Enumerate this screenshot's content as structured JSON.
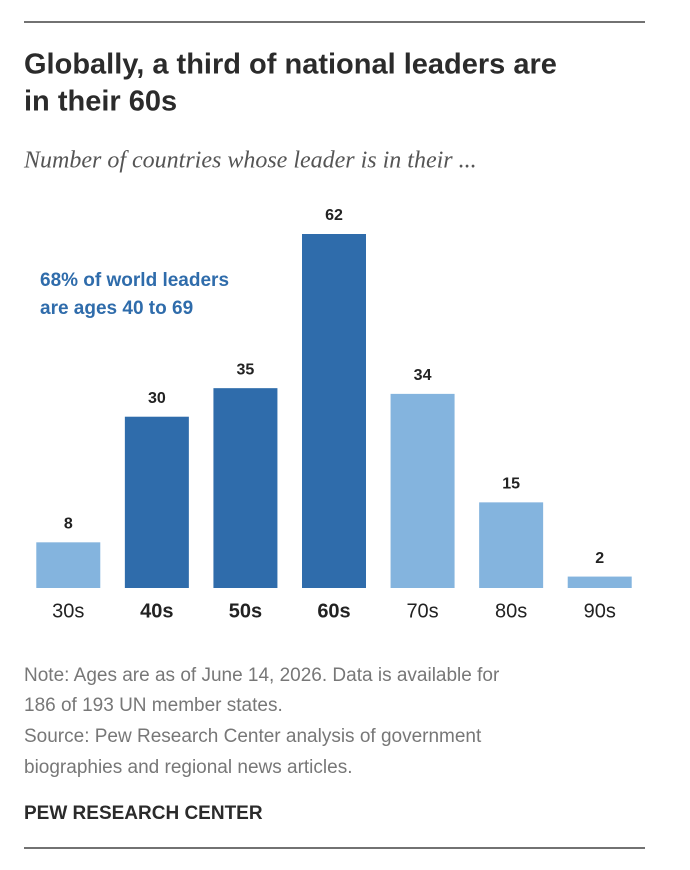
{
  "chart_data": {
    "type": "bar",
    "title": [
      "Globally, a third of national leaders are",
      "in their 60s"
    ],
    "subtitle": "Number of countries whose leader is in their ...",
    "categories": [
      "30s",
      "40s",
      "50s",
      "60s",
      "70s",
      "80s",
      "90s"
    ],
    "values": [
      8,
      30,
      35,
      62,
      34,
      15,
      2
    ],
    "colors": [
      "#84b4de",
      "#2f6cab",
      "#2f6cab",
      "#2f6cab",
      "#84b4de",
      "#84b4de",
      "#84b4de"
    ],
    "ylim": [
      0,
      62
    ],
    "annotation": [
      "68% of world leaders",
      "are ages 40 to 69"
    ],
    "annotation_color": "#2f6cab",
    "notes": [
      "Note: Ages are as of June 14, 2026. Data is available for",
      "186 of 193 UN member states.",
      "Source: Pew Research Center analysis of government",
      "biographies and regional news articles."
    ],
    "source": "PEW RESEARCH CENTER"
  }
}
